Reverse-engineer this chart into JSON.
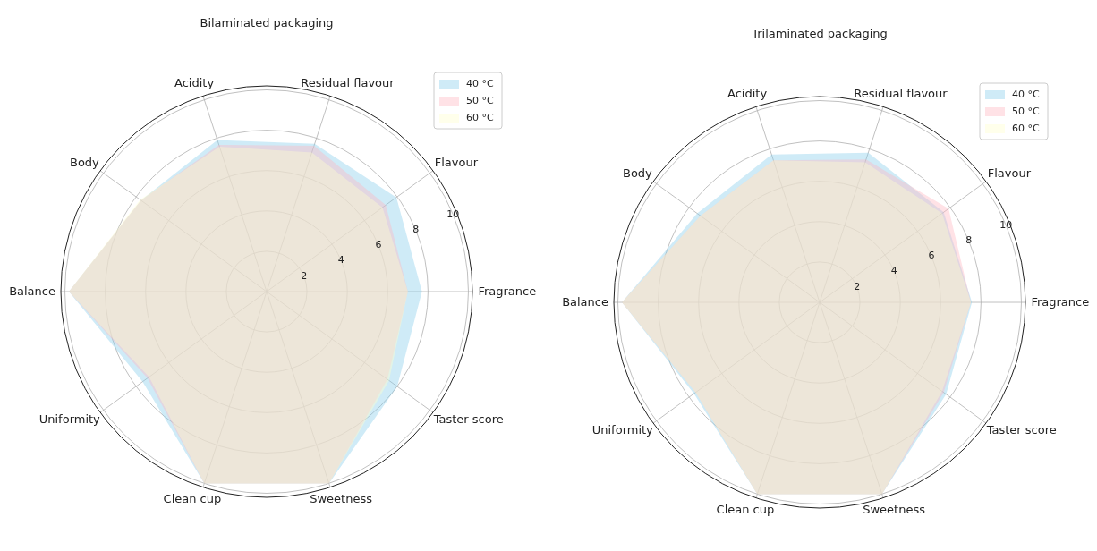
{
  "chart_data": [
    {
      "type": "radar",
      "title": "Bilaminated packaging",
      "categories": [
        "Residual flavour",
        "Flavour",
        "Fragrance",
        "Taster score",
        "Sweetness",
        "Clean cup",
        "Uniformity",
        "Balance",
        "Body",
        "Acidity"
      ],
      "series": [
        {
          "name": "40 °C",
          "color": "#87ceeb",
          "values": [
            7.7,
            7.95,
            7.7,
            8.0,
            10,
            10,
            7.6,
            9.8,
            7.7,
            7.9
          ]
        },
        {
          "name": "50 °C",
          "color": "#ffb6c1",
          "values": [
            7.6,
            7.3,
            7.0,
            7.4,
            10,
            10,
            7.3,
            9.8,
            7.7,
            7.65
          ]
        },
        {
          "name": "60 °C",
          "color": "#ffffcc",
          "values": [
            7.25,
            7.1,
            7.0,
            7.5,
            10,
            10,
            7.2,
            9.8,
            7.75,
            7.55
          ]
        }
      ],
      "ylim": [
        0,
        10.2
      ],
      "yticks": [
        2,
        4,
        6,
        8,
        10
      ],
      "grid": true,
      "legend": "top right"
    },
    {
      "type": "radar",
      "title": "Trilaminated packaging",
      "categories": [
        "Residual flavour",
        "Flavour",
        "Fragrance",
        "Taster score",
        "Sweetness",
        "Clean cup",
        "Uniformity",
        "Balance",
        "Body",
        "Acidity"
      ],
      "series": [
        {
          "name": "40 °C",
          "color": "#87ceeb",
          "values": [
            7.8,
            7.6,
            7.55,
            7.75,
            10,
            10,
            7.7,
            9.8,
            7.5,
            7.7
          ]
        },
        {
          "name": "50 °C",
          "color": "#ffb6c1",
          "values": [
            7.45,
            7.9,
            7.5,
            7.6,
            10,
            10,
            7.6,
            9.8,
            7.3,
            7.4
          ]
        },
        {
          "name": "60 °C",
          "color": "#ffffcc",
          "values": [
            7.3,
            7.5,
            7.5,
            7.5,
            10,
            10,
            7.6,
            9.8,
            7.3,
            7.4
          ]
        }
      ],
      "ylim": [
        0,
        10.2
      ],
      "yticks": [
        2,
        4,
        6,
        8,
        10
      ],
      "grid": true,
      "legend": "top right"
    }
  ]
}
